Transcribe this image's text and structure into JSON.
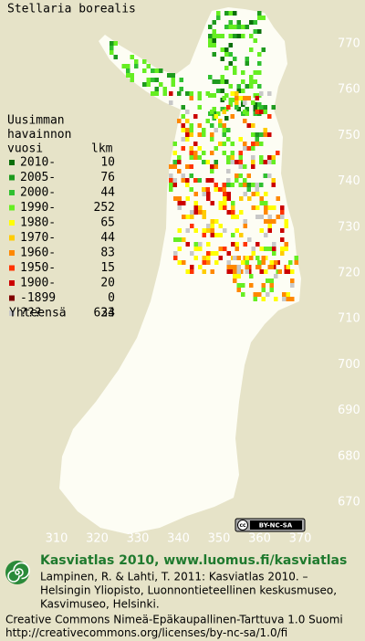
{
  "title": "Stellaria borealis",
  "legend": {
    "heading": [
      "Uusimman",
      "havainnon"
    ],
    "year_column": "vuosi",
    "count_column": "lkm",
    "rows": [
      {
        "label": "2010-",
        "count": 10,
        "color": "#0b6e0b"
      },
      {
        "label": "2005-",
        "count": 76,
        "color": "#1e9a1e"
      },
      {
        "label": "2000-",
        "count": 44,
        "color": "#30c030"
      },
      {
        "label": "1990-",
        "count": 252,
        "color": "#66ee22"
      },
      {
        "label": "1980-",
        "count": 65,
        "color": "#ffff00"
      },
      {
        "label": "1970-",
        "count": 44,
        "color": "#ffcc00"
      },
      {
        "label": "1960-",
        "count": 83,
        "color": "#ff8800"
      },
      {
        "label": "1950-",
        "count": 15,
        "color": "#ff3300"
      },
      {
        "label": "1900-",
        "count": 20,
        "color": "#cc0000"
      },
      {
        "label": "-1899",
        "count": 0,
        "color": "#800000"
      },
      {
        "label": "???",
        "count": 24,
        "color": "#c8c8c8"
      }
    ],
    "total_label": "Yhteensä",
    "total": 633
  },
  "grid": {
    "x_ticks": [
      310,
      320,
      330,
      340,
      350,
      360,
      370
    ],
    "y_ticks": [
      770,
      760,
      750,
      740,
      730,
      720,
      710,
      700,
      690,
      680,
      670
    ]
  },
  "badge": {
    "cc": "cc",
    "terms": "BY-NC-SA"
  },
  "footer": {
    "heading": "Kasviatlas 2010, www.luomus.fi/kasviatlas",
    "citation": [
      "Lampinen, R. & Lahti, T. 2011: Kasviatlas 2010. –",
      "Helsingin Yliopisto, Luonnontieteellinen keskusmuseo,",
      "Kasvimuseo, Helsinki."
    ],
    "license": [
      "Creative Commons Nimeä-Epäkaupallinen-Tarttuva 1.0 Suomi",
      "http://creativecommons.org/licenses/by-nc-sa/1.0/fi"
    ]
  }
}
